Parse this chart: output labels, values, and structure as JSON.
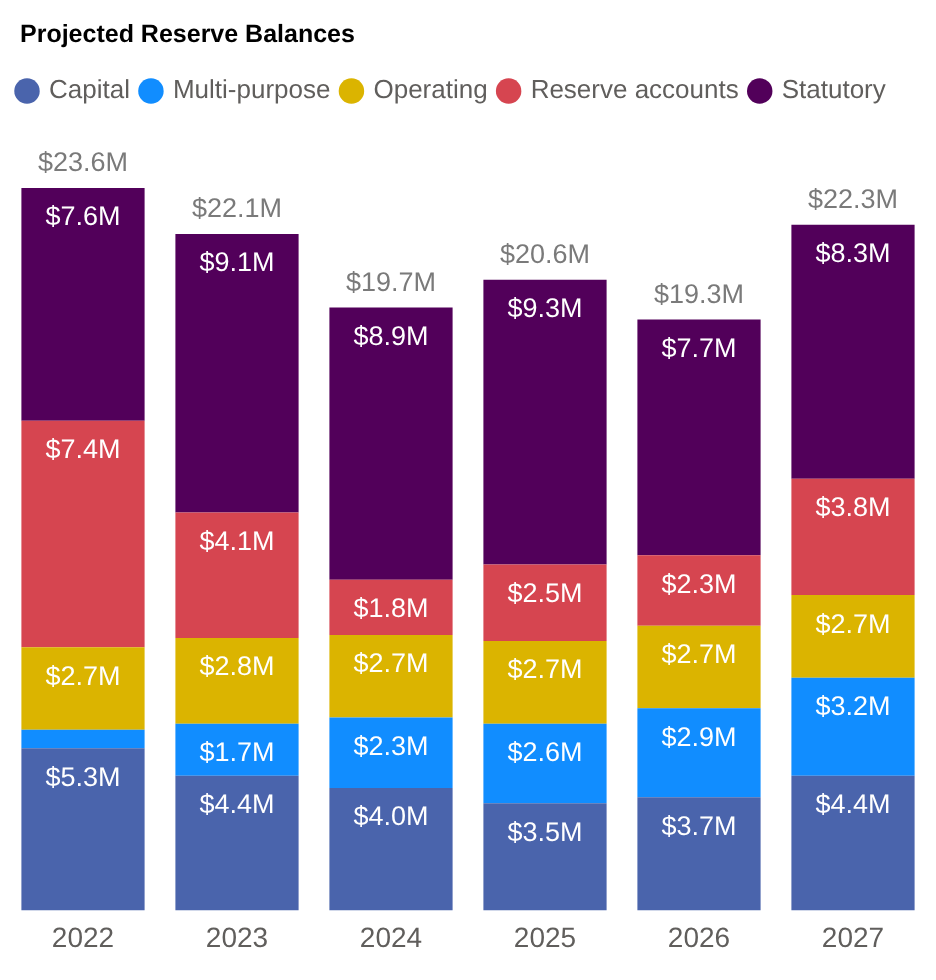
{
  "chart_data": {
    "type": "bar",
    "title": "Projected Reserve Balances",
    "categories": [
      "2022",
      "2023",
      "2024",
      "2025",
      "2026",
      "2027"
    ],
    "stacked": true,
    "legend": "top left",
    "tick_labels": "x",
    "series": [
      {
        "name": "Capital",
        "color": "#4a64ac",
        "values": [
          5.3,
          4.4,
          4.0,
          3.5,
          3.7,
          4.4
        ],
        "value_labels": [
          "$5.3M",
          "$4.4M",
          "$4.0M",
          "$3.5M",
          "$3.7M",
          "$4.4M"
        ]
      },
      {
        "name": "Multi-purpose",
        "color": "#118dff",
        "values": [
          0.6,
          1.7,
          2.3,
          2.6,
          2.9,
          3.2
        ],
        "value_labels": [
          null,
          "$1.7M",
          "$2.3M",
          "$2.6M",
          "$2.9M",
          "$3.2M"
        ]
      },
      {
        "name": "Operating",
        "color": "#dbb400",
        "values": [
          2.7,
          2.8,
          2.7,
          2.7,
          2.7,
          2.7
        ],
        "value_labels": [
          "$2.7M",
          "$2.8M",
          "$2.7M",
          "$2.7M",
          "$2.7M",
          "$2.7M"
        ]
      },
      {
        "name": "Reserve accounts",
        "color": "#d64550",
        "values": [
          7.4,
          4.1,
          1.8,
          2.5,
          2.3,
          3.8
        ],
        "value_labels": [
          "$7.4M",
          "$4.1M",
          "$1.8M",
          "$2.5M",
          "$2.3M",
          "$3.8M"
        ]
      },
      {
        "name": "Statutory",
        "color": "#52005a",
        "values": [
          7.6,
          9.1,
          8.9,
          9.3,
          7.7,
          8.3
        ],
        "value_labels": [
          "$7.6M",
          "$9.1M",
          "$8.9M",
          "$9.3M",
          "$7.7M",
          "$8.3M"
        ]
      }
    ],
    "totals": [
      "$23.6M",
      "$22.1M",
      "$19.7M",
      "$20.6M",
      "$19.3M",
      "$22.3M"
    ]
  }
}
